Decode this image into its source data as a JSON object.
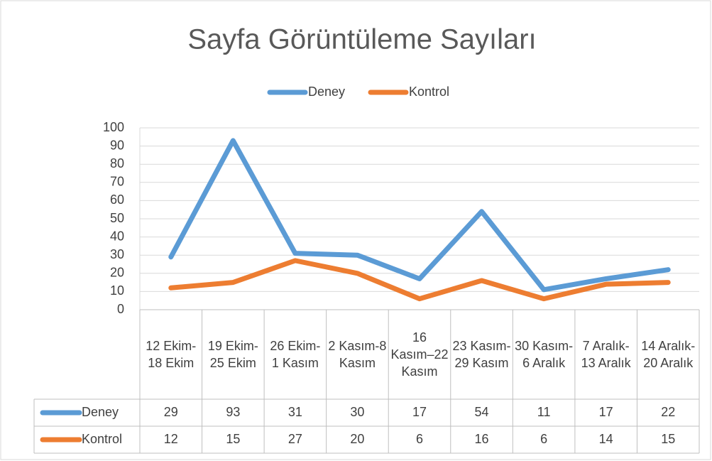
{
  "chart_data": {
    "type": "line",
    "title": "Sayfa Görüntüleme Sayıları",
    "categories": [
      "12 Ekim-18 Ekim",
      "19 Ekim-25 Ekim",
      "26 Ekim- 1 Kasım",
      "2 Kasım-8 Kasım",
      "16 Kasım–22 Kasım",
      "23 Kasım-29 Kasım",
      "30 Kasım-6 Aralık",
      "7 Aralık-13 Aralık",
      "14 Aralık-20 Aralık"
    ],
    "series": [
      {
        "name": "Deney",
        "color": "#5b9bd5",
        "values": [
          29,
          93,
          31,
          30,
          17,
          54,
          11,
          17,
          22
        ]
      },
      {
        "name": "Kontrol",
        "color": "#ed7d31",
        "values": [
          12,
          15,
          27,
          20,
          6,
          16,
          6,
          14,
          15
        ]
      }
    ],
    "ylim": [
      0,
      100
    ],
    "yticks": [
      0,
      10,
      20,
      30,
      40,
      50,
      60,
      70,
      80,
      90,
      100
    ],
    "grid": true,
    "legend": "top"
  }
}
